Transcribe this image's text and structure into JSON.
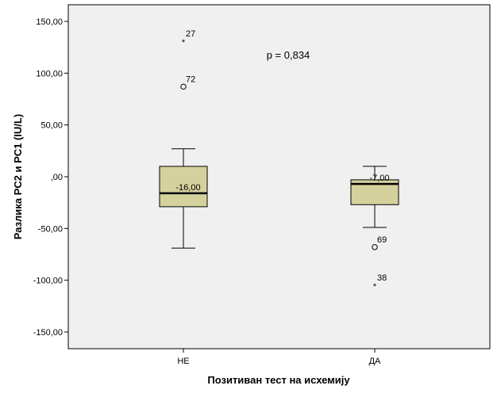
{
  "chart_data": {
    "type": "boxplot",
    "xlabel": "Позитиван тест на исхемију",
    "ylabel": "Разлика PC2 и PC1 (IU/L)",
    "ylim": [
      -165,
      160
    ],
    "yticks": [
      150,
      100,
      50,
      0,
      -50,
      -100,
      -150
    ],
    "ytick_labels": [
      "150,00",
      "100,00",
      "50,00",
      ",00",
      "-50,00",
      "-100,00",
      "-150,00"
    ],
    "categories": [
      "НЕ",
      "ДА"
    ],
    "annotation": "p = 0,834",
    "grid": false,
    "colors": {
      "box_fill": "#d5d19d",
      "plot_bg": "#f0f0f0",
      "border": "#000000"
    },
    "boxes": [
      {
        "category": "НЕ",
        "whisker_low": -69,
        "q1": -29,
        "median": -16,
        "q3": 10,
        "whisker_high": 27,
        "median_label": "-16,00",
        "outliers": [
          {
            "value": 87,
            "label": "72",
            "marker": "circle"
          },
          {
            "value": 131,
            "label": "27",
            "marker": "star"
          }
        ]
      },
      {
        "category": "ДА",
        "whisker_low": -49,
        "q1": -27,
        "median": -7,
        "q3": -3,
        "whisker_high": 10,
        "median_label": "-7,00",
        "outliers": [
          {
            "value": -68,
            "label": "69",
            "marker": "circle"
          },
          {
            "value": -105,
            "label": "38",
            "marker": "star"
          }
        ]
      }
    ]
  }
}
